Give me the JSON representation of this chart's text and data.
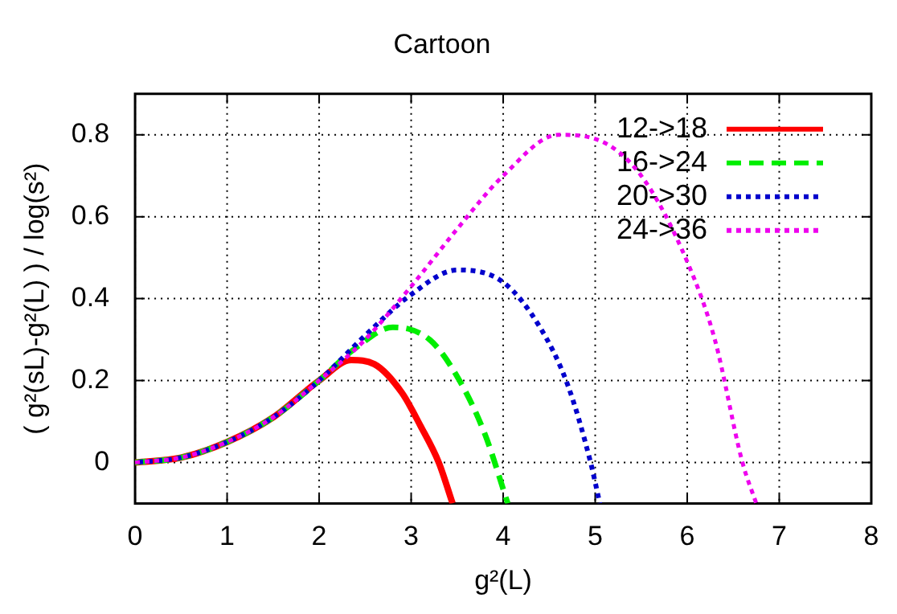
{
  "chart_data": {
    "type": "line",
    "title": "Cartoon",
    "xlabel": "g²(L)",
    "ylabel": "( g²(sL)-g²(L) ) / log(s²)",
    "xlim": [
      0,
      8
    ],
    "xticks": [
      0,
      1,
      2,
      3,
      4,
      5,
      6,
      7,
      8
    ],
    "ylim": [
      -0.1,
      0.9
    ],
    "yticks": [
      0,
      0.2,
      0.4,
      0.6,
      0.8
    ],
    "grid": true,
    "legend": "top right",
    "marker": "none",
    "series": [
      {
        "name": "12->18",
        "color": "#ff0000",
        "line_style": "solid",
        "x": [
          0,
          0.5,
          1,
          1.5,
          2,
          2.35,
          2.6,
          2.9,
          3.1,
          3.3,
          3.45
        ],
        "values": [
          0,
          0.012,
          0.05,
          0.11,
          0.2,
          0.25,
          0.24,
          0.17,
          0.09,
          0.0,
          -0.1
        ]
      },
      {
        "name": "16->24",
        "color": "#00ee00",
        "line_style": "dashed",
        "x": [
          0,
          0.5,
          1,
          1.5,
          2,
          2.4,
          2.8,
          3.2,
          3.5,
          3.8,
          4.05
        ],
        "values": [
          0,
          0.012,
          0.05,
          0.11,
          0.2,
          0.28,
          0.33,
          0.3,
          0.21,
          0.07,
          -0.1
        ]
      },
      {
        "name": "20->30",
        "color": "#0000cc",
        "line_style": "dotted",
        "x": [
          0,
          0.5,
          1,
          1.5,
          2,
          2.5,
          3,
          3.5,
          4,
          4.4,
          4.7,
          4.95,
          5.05
        ],
        "values": [
          0,
          0.012,
          0.05,
          0.11,
          0.2,
          0.31,
          0.41,
          0.47,
          0.44,
          0.33,
          0.19,
          0.0,
          -0.1
        ]
      },
      {
        "name": "24->36",
        "color": "#ee00ee",
        "line_style": "dotted",
        "x": [
          0,
          0.5,
          1,
          1.5,
          2,
          2.5,
          3,
          3.5,
          4,
          4.6,
          5,
          5.5,
          6,
          6.3,
          6.6,
          6.75
        ],
        "values": [
          0,
          0.012,
          0.05,
          0.11,
          0.2,
          0.3,
          0.43,
          0.57,
          0.7,
          0.8,
          0.79,
          0.7,
          0.49,
          0.3,
          0.0,
          -0.1
        ]
      }
    ]
  }
}
